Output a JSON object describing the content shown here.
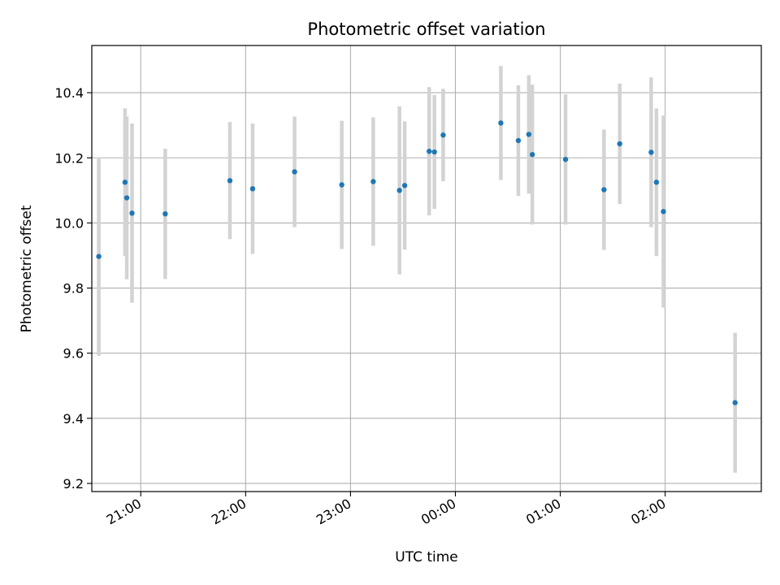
{
  "chart_data": {
    "type": "scatter",
    "title": "Photometric offset variation",
    "xlabel": "UTC time",
    "ylabel": "Photometric offset",
    "x_scale": "time",
    "xlim": [
      "20:32",
      "02:55"
    ],
    "ylim": [
      9.175,
      10.545
    ],
    "x_ticks": [
      "21:00",
      "22:00",
      "23:00",
      "00:00",
      "01:00",
      "02:00"
    ],
    "y_ticks": [
      "9.2",
      "9.4",
      "9.6",
      "9.8",
      "10.0",
      "10.2",
      "10.4"
    ],
    "grid": true,
    "legend": "none",
    "colors": {
      "marker": "#1f77b4",
      "errorbar": "#d3d3d3",
      "grid": "#b0b0b0"
    },
    "series": [
      {
        "points": [
          {
            "x": "20:36",
            "y": 9.897,
            "err": 0.305
          },
          {
            "x": "20:51",
            "y": 10.125,
            "err": 0.227
          },
          {
            "x": "20:52",
            "y": 10.077,
            "err": 0.25
          },
          {
            "x": "20:55",
            "y": 10.03,
            "err": 0.275
          },
          {
            "x": "21:14",
            "y": 10.028,
            "err": 0.2
          },
          {
            "x": "21:51",
            "y": 10.13,
            "err": 0.18
          },
          {
            "x": "22:04",
            "y": 10.105,
            "err": 0.2
          },
          {
            "x": "22:28",
            "y": 10.157,
            "err": 0.17
          },
          {
            "x": "22:55",
            "y": 10.117,
            "err": 0.197
          },
          {
            "x": "23:13",
            "y": 10.127,
            "err": 0.197
          },
          {
            "x": "23:28",
            "y": 10.1,
            "err": 0.258
          },
          {
            "x": "23:31",
            "y": 10.115,
            "err": 0.197
          },
          {
            "x": "23:45",
            "y": 10.22,
            "err": 0.197
          },
          {
            "x": "23:48",
            "y": 10.218,
            "err": 0.175
          },
          {
            "x": "23:53",
            "y": 10.27,
            "err": 0.142
          },
          {
            "x": "00:26",
            "y": 10.307,
            "err": 0.175
          },
          {
            "x": "00:36",
            "y": 10.253,
            "err": 0.17
          },
          {
            "x": "00:42",
            "y": 10.272,
            "err": 0.182
          },
          {
            "x": "00:44",
            "y": 10.21,
            "err": 0.215
          },
          {
            "x": "01:03",
            "y": 10.195,
            "err": 0.2
          },
          {
            "x": "01:25",
            "y": 10.102,
            "err": 0.185
          },
          {
            "x": "01:34",
            "y": 10.243,
            "err": 0.185
          },
          {
            "x": "01:52",
            "y": 10.217,
            "err": 0.23
          },
          {
            "x": "01:55",
            "y": 10.125,
            "err": 0.227
          },
          {
            "x": "01:59",
            "y": 10.035,
            "err": 0.295
          },
          {
            "x": "02:40",
            "y": 9.448,
            "err": 0.215
          }
        ]
      }
    ]
  }
}
